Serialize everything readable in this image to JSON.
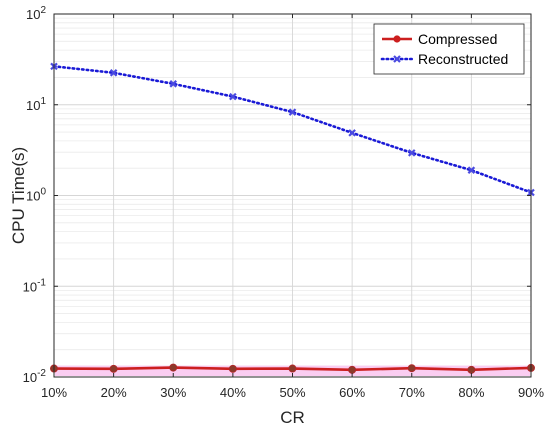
{
  "chart_data": {
    "type": "line",
    "title": "",
    "xlabel": "CR",
    "ylabel": "CPU Time(s)",
    "y_scale": "log",
    "ylim": [
      0.01,
      100
    ],
    "grid": true,
    "legend_position": "top-right",
    "categories": [
      "10%",
      "20%",
      "30%",
      "40%",
      "50%",
      "60%",
      "70%",
      "80%",
      "90%"
    ],
    "y_ticks": [
      {
        "value": 0.01,
        "base": "10",
        "exp": "-2"
      },
      {
        "value": 0.1,
        "base": "10",
        "exp": "-1"
      },
      {
        "value": 1,
        "base": "10",
        "exp": "0"
      },
      {
        "value": 10,
        "base": "10",
        "exp": "1"
      },
      {
        "value": 100,
        "base": "10",
        "exp": "2"
      }
    ],
    "series": [
      {
        "name": "Compressed",
        "color": "#cc1f1f",
        "marker": "circle",
        "line_style": "solid",
        "values": [
          0.0124,
          0.0123,
          0.0127,
          0.0123,
          0.0124,
          0.012,
          0.0125,
          0.012,
          0.0126
        ]
      },
      {
        "name": "Reconstructed",
        "color": "#1a1ad6",
        "marker": "x",
        "line_style": "dotted",
        "values": [
          26.5,
          22.5,
          17.0,
          12.3,
          8.3,
          4.9,
          2.95,
          1.9,
          1.08
        ]
      }
    ]
  }
}
